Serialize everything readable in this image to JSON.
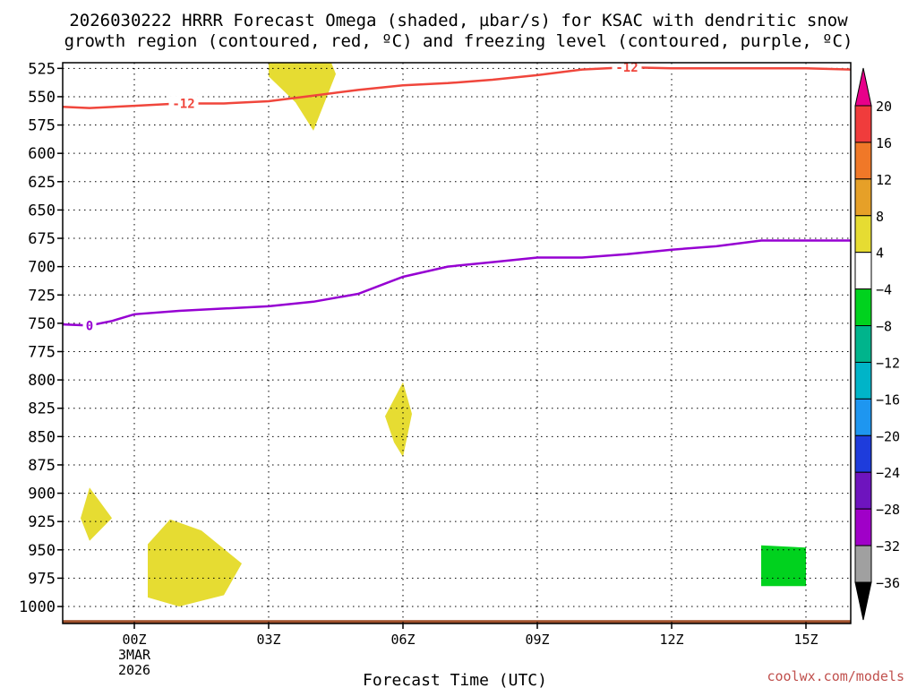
{
  "chart_data": {
    "type": "heatmap",
    "title_line1": "2026030222 HRRR Forecast Omega (shaded, µbar/s) for KSAC with dendritic snow",
    "title_line2": "growth region (contoured, red, ºC) and freezing level (contoured, purple, ºC)",
    "xlabel": "Forecast Time (UTC)",
    "xlim": [
      -1.6,
      16.0
    ],
    "x_ticks": [
      {
        "x": 0,
        "label": "00Z",
        "sub1": "3MAR",
        "sub2": "2026"
      },
      {
        "x": 3,
        "label": "03Z"
      },
      {
        "x": 6,
        "label": "06Z"
      },
      {
        "x": 9,
        "label": "09Z"
      },
      {
        "x": 12,
        "label": "12Z"
      },
      {
        "x": 15,
        "label": "15Z"
      }
    ],
    "ylabel": "",
    "ylim": [
      520,
      1015
    ],
    "y_ticks": [
      525,
      550,
      575,
      600,
      625,
      650,
      675,
      700,
      725,
      750,
      775,
      800,
      825,
      850,
      875,
      900,
      925,
      950,
      975,
      1000
    ],
    "colorbar": {
      "levels": [
        "20",
        "16",
        "12",
        "8",
        "4",
        "−4",
        "−8",
        "−12",
        "−16",
        "−20",
        "−24",
        "−28",
        "−32",
        "−36"
      ],
      "colors": [
        "#e8008a",
        "#f03c3c",
        "#f07828",
        "#e6a028",
        "#e6dc32",
        "#ffffff",
        "#00d21e",
        "#00b48c",
        "#00b4c8",
        "#1e96f0",
        "#1e3cdc",
        "#6e14be",
        "#a000c8",
        "#a0a0a0",
        "#000000"
      ]
    },
    "contours": [
      {
        "name": "dgz_-12C",
        "label": "-12",
        "color": "#f0463c",
        "points": [
          [
            -1.6,
            559
          ],
          [
            -1.0,
            560
          ],
          [
            0,
            558
          ],
          [
            1.0,
            556
          ],
          [
            2.0,
            556
          ],
          [
            3.0,
            554
          ],
          [
            4.0,
            549
          ],
          [
            5.0,
            544
          ],
          [
            6.0,
            540
          ],
          [
            7.0,
            538
          ],
          [
            8.0,
            535
          ],
          [
            9.0,
            531
          ],
          [
            10.0,
            526
          ],
          [
            11.0,
            524
          ],
          [
            12.0,
            525
          ],
          [
            13.0,
            525
          ],
          [
            14.0,
            525
          ],
          [
            15.0,
            525
          ],
          [
            16.0,
            526
          ]
        ]
      },
      {
        "name": "freezing_0C",
        "label": "0",
        "color": "#9600d2",
        "points": [
          [
            -1.6,
            751
          ],
          [
            -1.0,
            752
          ],
          [
            -0.5,
            748
          ],
          [
            0,
            742
          ],
          [
            1.0,
            739
          ],
          [
            2.0,
            737
          ],
          [
            3.0,
            735
          ],
          [
            4.0,
            731
          ],
          [
            5.0,
            724
          ],
          [
            5.6,
            715
          ],
          [
            6.0,
            709
          ],
          [
            7.0,
            700
          ],
          [
            8.0,
            696
          ],
          [
            9.0,
            692
          ],
          [
            10.0,
            692
          ],
          [
            11.0,
            689
          ],
          [
            12.0,
            685
          ],
          [
            13.0,
            682
          ],
          [
            14.0,
            677
          ],
          [
            15.0,
            677
          ],
          [
            16.0,
            677
          ]
        ]
      }
    ],
    "shaded_regions": [
      {
        "name": "omega-4to8-a",
        "color": "#e6dc32",
        "points": [
          [
            3.0,
            520
          ],
          [
            4.4,
            520
          ],
          [
            4.5,
            530
          ],
          [
            4.0,
            580
          ],
          [
            3.6,
            555
          ],
          [
            3.0,
            532
          ]
        ]
      },
      {
        "name": "omega-4to8-b",
        "color": "#e6dc32",
        "points": [
          [
            5.6,
            832
          ],
          [
            6.0,
            802
          ],
          [
            6.2,
            830
          ],
          [
            6.0,
            868
          ],
          [
            5.8,
            855
          ]
        ]
      },
      {
        "name": "omega-4to8-c",
        "color": "#e6dc32",
        "points": [
          [
            -1.2,
            922
          ],
          [
            -1.0,
            895
          ],
          [
            -0.5,
            922
          ],
          [
            -1.0,
            942
          ]
        ]
      },
      {
        "name": "omega-4to8-d",
        "color": "#e6dc32",
        "points": [
          [
            0.3,
            945
          ],
          [
            0.8,
            923
          ],
          [
            1.5,
            933
          ],
          [
            2.4,
            962
          ],
          [
            2.0,
            990
          ],
          [
            1.0,
            1000
          ],
          [
            0.3,
            992
          ]
        ]
      },
      {
        "name": "omega-neg4to-8",
        "color": "#00d21e",
        "points": [
          [
            14.0,
            946
          ],
          [
            15.0,
            948
          ],
          [
            15.0,
            982
          ],
          [
            14.0,
            982
          ]
        ]
      }
    ],
    "terrain": {
      "color": "#a0522d",
      "top": 1012
    }
  },
  "credit": "coolwx.com/models"
}
